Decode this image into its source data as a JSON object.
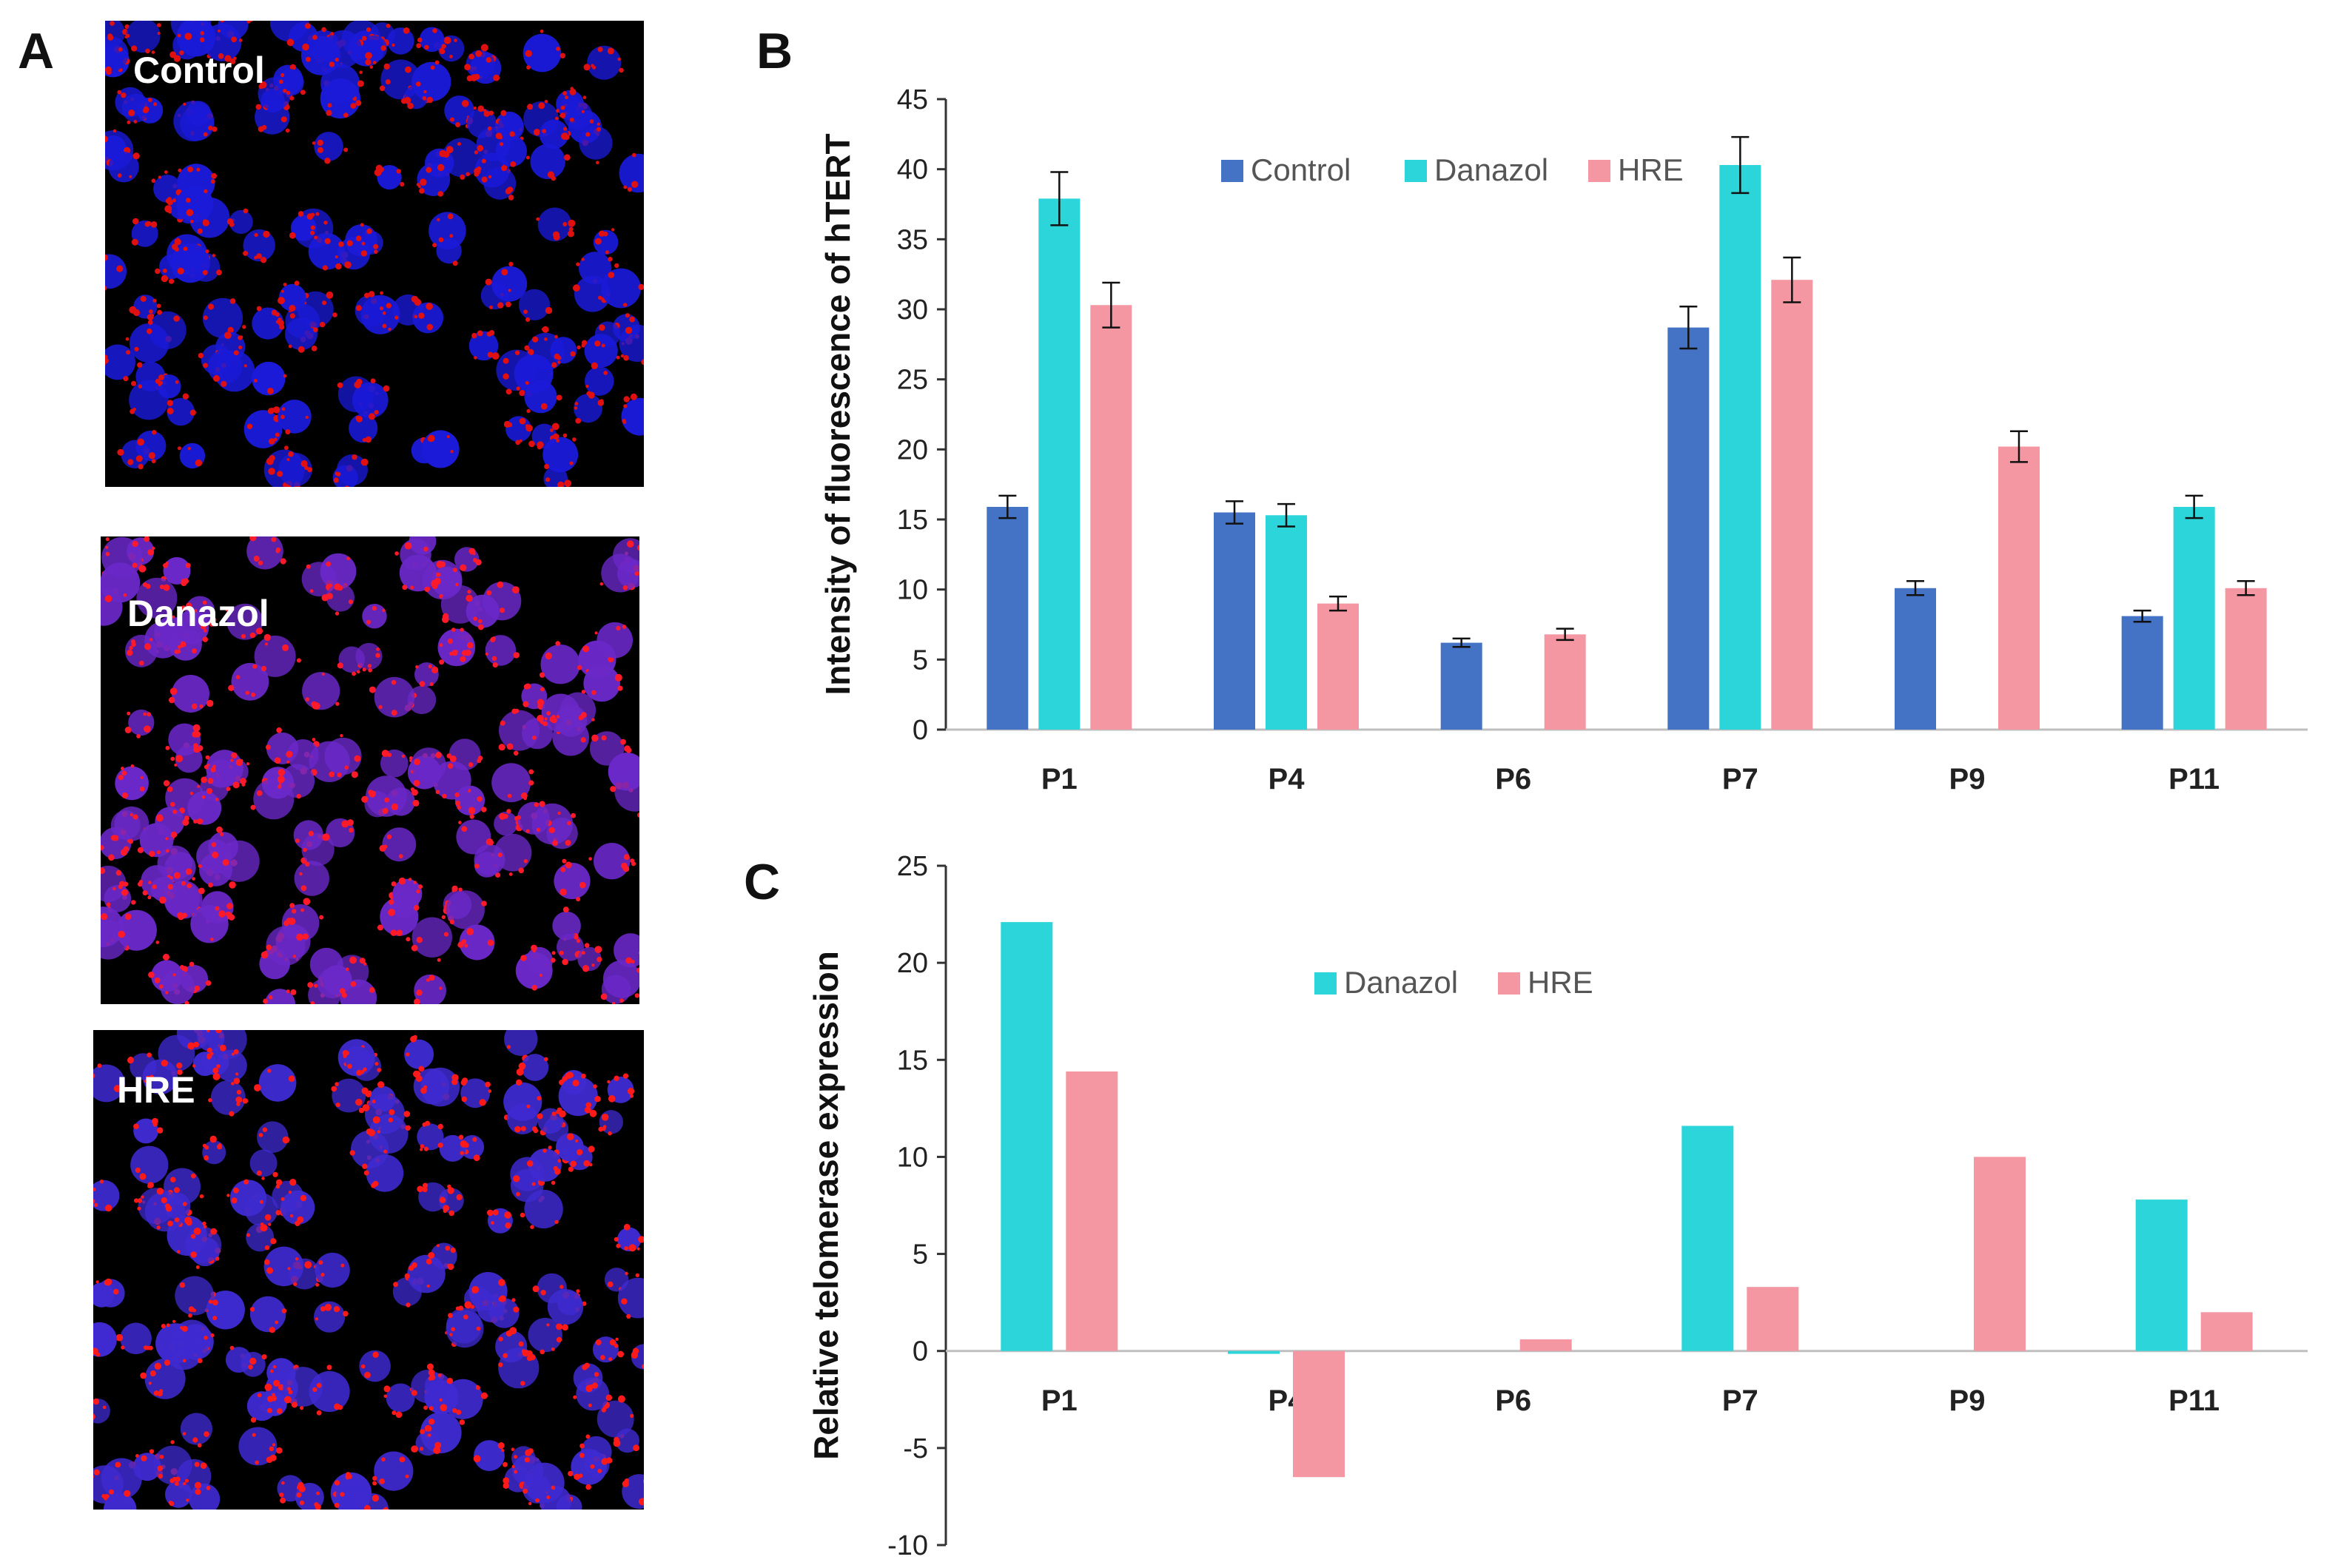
{
  "panel_a": {
    "letter": "A",
    "images": [
      {
        "label": "Control",
        "tint": "#1a1ad8",
        "dot": "#e01010"
      },
      {
        "label": "Danazol",
        "tint": "#6a28c8",
        "dot": "#ff1a2a"
      },
      {
        "label": "HRE",
        "tint": "#3e2ad0",
        "dot": "#ff1a1a"
      }
    ]
  },
  "colors": {
    "control": "#4472c4",
    "danazol": "#2cd5d9",
    "hre": "#f497a3"
  },
  "chart_data": [
    {
      "panel": "B",
      "type": "bar",
      "categories": [
        "P1",
        "P4",
        "P6",
        "P7",
        "P9",
        "P11"
      ],
      "ylabel": "Intensity of fluorescence of hTERT",
      "xlabel": "",
      "ylim": [
        0,
        45
      ],
      "yticks": [
        0,
        5,
        10,
        15,
        20,
        25,
        30,
        35,
        40,
        45
      ],
      "legend": [
        "Control",
        "Danazol",
        "HRE"
      ],
      "legend_position": "top-center",
      "grid": false,
      "series": [
        {
          "name": "Control",
          "values": [
            15.9,
            15.5,
            6.2,
            28.7,
            10.1,
            8.1
          ],
          "errors": [
            0.8,
            0.8,
            0.3,
            1.5,
            0.5,
            0.4
          ]
        },
        {
          "name": "Danazol",
          "values": [
            37.9,
            15.3,
            0,
            40.3,
            0,
            15.9
          ],
          "errors": [
            1.9,
            0.8,
            0,
            2.0,
            0,
            0.8
          ]
        },
        {
          "name": "HRE",
          "values": [
            30.3,
            9.0,
            6.8,
            32.1,
            20.2,
            10.1
          ],
          "errors": [
            1.6,
            0.5,
            0.4,
            1.6,
            1.1,
            0.5
          ]
        }
      ]
    },
    {
      "panel": "C",
      "type": "bar",
      "categories": [
        "P1",
        "P4",
        "P6",
        "P7",
        "P9",
        "P11"
      ],
      "ylabel": "Relative telomerase expression",
      "xlabel": "",
      "ylim": [
        -10,
        25
      ],
      "yticks": [
        -10,
        -5,
        0,
        5,
        10,
        15,
        20,
        25
      ],
      "legend": [
        "Danazol",
        "HRE"
      ],
      "legend_position": "top-center",
      "grid": false,
      "series": [
        {
          "name": "Danazol",
          "values": [
            22.1,
            -0.15,
            0,
            11.6,
            0,
            7.8
          ]
        },
        {
          "name": "HRE",
          "values": [
            14.4,
            -6.5,
            0.6,
            3.3,
            10.0,
            2.0
          ]
        }
      ]
    }
  ]
}
